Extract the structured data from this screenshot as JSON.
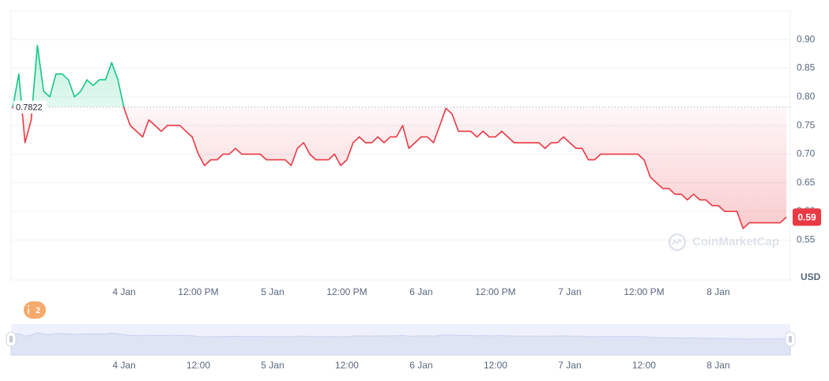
{
  "chart_data": {
    "type": "line",
    "categories": [
      null,
      null,
      null,
      null,
      null,
      null,
      null,
      null,
      null,
      null,
      null,
      null,
      null,
      null,
      null,
      null,
      null,
      null,
      "4 Jan",
      null,
      null,
      null,
      null,
      null,
      null,
      null,
      null,
      null,
      null,
      null,
      "12:00 PM",
      null,
      null,
      null,
      null,
      null,
      null,
      null,
      null,
      null,
      null,
      null,
      "5 Jan",
      null,
      null,
      null,
      null,
      null,
      null,
      null,
      null,
      null,
      null,
      null,
      "12:00 PM",
      null,
      null,
      null,
      null,
      null,
      null,
      null,
      null,
      null,
      null,
      null,
      "6 Jan",
      null,
      null,
      null,
      null,
      null,
      null,
      null,
      null,
      null,
      null,
      null,
      "12:00 PM",
      null,
      null,
      null,
      null,
      null,
      null,
      null,
      null,
      null,
      null,
      null,
      "7 Jan",
      null,
      null,
      null,
      null,
      null,
      null,
      null,
      null,
      null,
      null,
      null,
      "12:00 PM",
      null,
      null,
      null,
      null,
      null,
      null,
      null,
      null,
      null,
      null,
      null,
      "8 Jan",
      null,
      null,
      null,
      null,
      null,
      null,
      null,
      null,
      null,
      null,
      null
    ],
    "values": [
      0.78,
      0.84,
      0.72,
      0.76,
      0.89,
      0.81,
      0.8,
      0.84,
      0.84,
      0.83,
      0.8,
      0.81,
      0.83,
      0.82,
      0.83,
      0.83,
      0.86,
      0.83,
      0.78,
      0.75,
      0.74,
      0.73,
      0.76,
      0.75,
      0.74,
      0.75,
      0.75,
      0.75,
      0.74,
      0.73,
      0.7,
      0.68,
      0.69,
      0.69,
      0.7,
      0.7,
      0.71,
      0.7,
      0.7,
      0.7,
      0.7,
      0.69,
      0.69,
      0.69,
      0.69,
      0.68,
      0.71,
      0.72,
      0.7,
      0.69,
      0.69,
      0.69,
      0.7,
      0.68,
      0.69,
      0.72,
      0.73,
      0.72,
      0.72,
      0.73,
      0.72,
      0.73,
      0.73,
      0.75,
      0.71,
      0.72,
      0.73,
      0.73,
      0.72,
      0.75,
      0.78,
      0.77,
      0.74,
      0.74,
      0.74,
      0.73,
      0.74,
      0.73,
      0.73,
      0.74,
      0.73,
      0.72,
      0.72,
      0.72,
      0.72,
      0.72,
      0.71,
      0.72,
      0.72,
      0.73,
      0.72,
      0.71,
      0.71,
      0.69,
      0.69,
      0.7,
      0.7,
      0.7,
      0.7,
      0.7,
      0.7,
      0.7,
      0.69,
      0.66,
      0.65,
      0.64,
      0.64,
      0.63,
      0.63,
      0.62,
      0.63,
      0.62,
      0.62,
      0.61,
      0.61,
      0.6,
      0.6,
      0.6,
      0.57,
      0.58,
      0.58,
      0.58,
      0.58,
      0.58,
      0.58,
      0.59
    ],
    "color_up": "#16c784",
    "color_down": "#ea3943",
    "baseline": 0.7822,
    "current_price": 0.59,
    "ylim": [
      0.48,
      0.95
    ],
    "yticks": [
      {
        "value": 0.55,
        "label": "0.55"
      },
      {
        "value": 0.6,
        "label": "0.60"
      },
      {
        "value": 0.65,
        "label": "0.65"
      },
      {
        "value": 0.7,
        "label": "0.70"
      },
      {
        "value": 0.75,
        "label": "0.75"
      },
      {
        "value": 0.8,
        "label": "0.80"
      },
      {
        "value": 0.85,
        "label": "0.85"
      },
      {
        "value": 0.9,
        "label": "0.90"
      }
    ],
    "grid": true,
    "y_axis_label": "USD",
    "watermark": "CoinMarketCap",
    "annotation_count": 2,
    "navigator_categories": [
      null,
      null,
      null,
      null,
      null,
      null,
      null,
      null,
      null,
      null,
      null,
      null,
      null,
      null,
      null,
      null,
      null,
      null,
      "4 Jan",
      null,
      null,
      null,
      null,
      null,
      null,
      null,
      null,
      null,
      null,
      null,
      "12:00",
      null,
      null,
      null,
      null,
      null,
      null,
      null,
      null,
      null,
      null,
      null,
      "5 Jan",
      null,
      null,
      null,
      null,
      null,
      null,
      null,
      null,
      null,
      null,
      null,
      "12:00",
      null,
      null,
      null,
      null,
      null,
      null,
      null,
      null,
      null,
      null,
      null,
      "6 Jan",
      null,
      null,
      null,
      null,
      null,
      null,
      null,
      null,
      null,
      null,
      null,
      "12:00",
      null,
      null,
      null,
      null,
      null,
      null,
      null,
      null,
      null,
      null,
      null,
      "7 Jan",
      null,
      null,
      null,
      null,
      null,
      null,
      null,
      null,
      null,
      null,
      null,
      "12:00",
      null,
      null,
      null,
      null,
      null,
      null,
      null,
      null,
      null,
      null,
      null,
      "8 Jan",
      null,
      null,
      null,
      null,
      null,
      null,
      null,
      null,
      null,
      null,
      null
    ]
  }
}
